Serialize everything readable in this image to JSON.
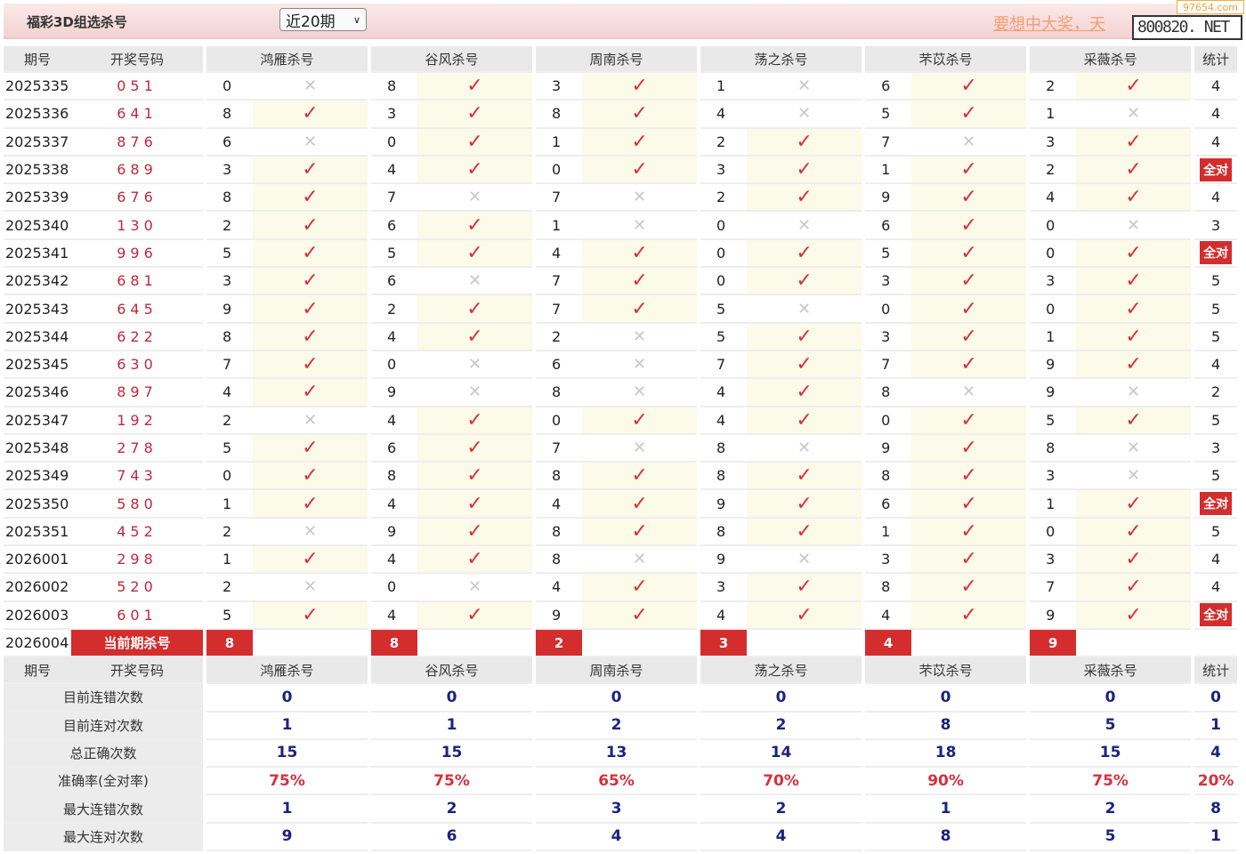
{
  "header": {
    "title": "福彩3D组选杀号",
    "period_select": "近20期",
    "promo_text": "要想中大奖，天",
    "site_box": "800820. NET",
    "site_tag": "97654.com"
  },
  "colors": {
    "check": "#d6303c",
    "cross": "#c8c8c8",
    "current_cell": "#d42d2d",
    "stat_number": "#1a237e",
    "check_bg": "#fcfae8"
  },
  "columns": {
    "issue": "期号",
    "draw": "开奖号码",
    "groups": [
      "鸿雁杀号",
      "谷风杀号",
      "周南杀号",
      "荡之杀号",
      "芣苡杀号",
      "采薇杀号"
    ],
    "stat": "统计"
  },
  "marks": {
    "check": "✓",
    "cross": "✕"
  },
  "rows": [
    {
      "issue": "2025335",
      "draw": "051",
      "kills": [
        [
          "0",
          0
        ],
        [
          "8",
          1
        ],
        [
          "3",
          1
        ],
        [
          "1",
          0
        ],
        [
          "6",
          1
        ],
        [
          "2",
          1
        ]
      ],
      "stat": "4"
    },
    {
      "issue": "2025336",
      "draw": "641",
      "kills": [
        [
          "8",
          1
        ],
        [
          "3",
          1
        ],
        [
          "8",
          1
        ],
        [
          "4",
          0
        ],
        [
          "5",
          1
        ],
        [
          "1",
          0
        ]
      ],
      "stat": "4"
    },
    {
      "issue": "2025337",
      "draw": "876",
      "kills": [
        [
          "6",
          0
        ],
        [
          "0",
          1
        ],
        [
          "1",
          1
        ],
        [
          "2",
          1
        ],
        [
          "7",
          0
        ],
        [
          "3",
          1
        ]
      ],
      "stat": "4"
    },
    {
      "issue": "2025338",
      "draw": "689",
      "kills": [
        [
          "3",
          1
        ],
        [
          "4",
          1
        ],
        [
          "0",
          1
        ],
        [
          "3",
          1
        ],
        [
          "1",
          1
        ],
        [
          "2",
          1
        ]
      ],
      "stat": "全对"
    },
    {
      "issue": "2025339",
      "draw": "676",
      "kills": [
        [
          "8",
          1
        ],
        [
          "7",
          0
        ],
        [
          "7",
          0
        ],
        [
          "2",
          1
        ],
        [
          "9",
          1
        ],
        [
          "4",
          1
        ]
      ],
      "stat": "4"
    },
    {
      "issue": "2025340",
      "draw": "130",
      "kills": [
        [
          "2",
          1
        ],
        [
          "6",
          1
        ],
        [
          "1",
          0
        ],
        [
          "0",
          0
        ],
        [
          "6",
          1
        ],
        [
          "0",
          0
        ]
      ],
      "stat": "3"
    },
    {
      "issue": "2025341",
      "draw": "996",
      "kills": [
        [
          "5",
          1
        ],
        [
          "5",
          1
        ],
        [
          "4",
          1
        ],
        [
          "0",
          1
        ],
        [
          "5",
          1
        ],
        [
          "0",
          1
        ]
      ],
      "stat": "全对"
    },
    {
      "issue": "2025342",
      "draw": "681",
      "kills": [
        [
          "3",
          1
        ],
        [
          "6",
          0
        ],
        [
          "7",
          1
        ],
        [
          "0",
          1
        ],
        [
          "3",
          1
        ],
        [
          "3",
          1
        ]
      ],
      "stat": "5"
    },
    {
      "issue": "2025343",
      "draw": "645",
      "kills": [
        [
          "9",
          1
        ],
        [
          "2",
          1
        ],
        [
          "7",
          1
        ],
        [
          "5",
          0
        ],
        [
          "0",
          1
        ],
        [
          "0",
          1
        ]
      ],
      "stat": "5"
    },
    {
      "issue": "2025344",
      "draw": "622",
      "kills": [
        [
          "8",
          1
        ],
        [
          "4",
          1
        ],
        [
          "2",
          0
        ],
        [
          "5",
          1
        ],
        [
          "3",
          1
        ],
        [
          "1",
          1
        ]
      ],
      "stat": "5"
    },
    {
      "issue": "2025345",
      "draw": "630",
      "kills": [
        [
          "7",
          1
        ],
        [
          "0",
          0
        ],
        [
          "6",
          0
        ],
        [
          "7",
          1
        ],
        [
          "7",
          1
        ],
        [
          "9",
          1
        ]
      ],
      "stat": "4"
    },
    {
      "issue": "2025346",
      "draw": "897",
      "kills": [
        [
          "4",
          1
        ],
        [
          "9",
          0
        ],
        [
          "8",
          0
        ],
        [
          "4",
          1
        ],
        [
          "8",
          0
        ],
        [
          "9",
          0
        ]
      ],
      "stat": "2"
    },
    {
      "issue": "2025347",
      "draw": "192",
      "kills": [
        [
          "2",
          0
        ],
        [
          "4",
          1
        ],
        [
          "0",
          1
        ],
        [
          "4",
          1
        ],
        [
          "0",
          1
        ],
        [
          "5",
          1
        ]
      ],
      "stat": "5"
    },
    {
      "issue": "2025348",
      "draw": "278",
      "kills": [
        [
          "5",
          1
        ],
        [
          "6",
          1
        ],
        [
          "7",
          0
        ],
        [
          "8",
          0
        ],
        [
          "9",
          1
        ],
        [
          "8",
          0
        ]
      ],
      "stat": "3"
    },
    {
      "issue": "2025349",
      "draw": "743",
      "kills": [
        [
          "0",
          1
        ],
        [
          "8",
          1
        ],
        [
          "8",
          1
        ],
        [
          "8",
          1
        ],
        [
          "8",
          1
        ],
        [
          "3",
          0
        ]
      ],
      "stat": "5"
    },
    {
      "issue": "2025350",
      "draw": "580",
      "kills": [
        [
          "1",
          1
        ],
        [
          "4",
          1
        ],
        [
          "4",
          1
        ],
        [
          "9",
          1
        ],
        [
          "6",
          1
        ],
        [
          "1",
          1
        ]
      ],
      "stat": "全对"
    },
    {
      "issue": "2025351",
      "draw": "452",
      "kills": [
        [
          "2",
          0
        ],
        [
          "9",
          1
        ],
        [
          "8",
          1
        ],
        [
          "8",
          1
        ],
        [
          "1",
          1
        ],
        [
          "0",
          1
        ]
      ],
      "stat": "5"
    },
    {
      "issue": "2026001",
      "draw": "298",
      "kills": [
        [
          "1",
          1
        ],
        [
          "4",
          1
        ],
        [
          "8",
          0
        ],
        [
          "9",
          0
        ],
        [
          "3",
          1
        ],
        [
          "3",
          1
        ]
      ],
      "stat": "4"
    },
    {
      "issue": "2026002",
      "draw": "520",
      "kills": [
        [
          "2",
          0
        ],
        [
          "0",
          0
        ],
        [
          "4",
          1
        ],
        [
          "3",
          1
        ],
        [
          "8",
          1
        ],
        [
          "7",
          1
        ]
      ],
      "stat": "4"
    },
    {
      "issue": "2026003",
      "draw": "601",
      "kills": [
        [
          "5",
          1
        ],
        [
          "4",
          1
        ],
        [
          "9",
          1
        ],
        [
          "4",
          1
        ],
        [
          "4",
          1
        ],
        [
          "9",
          1
        ]
      ],
      "stat": "全对"
    }
  ],
  "current": {
    "issue": "2026004",
    "label": "当前期杀号",
    "kills": [
      "8",
      "8",
      "2",
      "3",
      "4",
      "9"
    ]
  },
  "stats": [
    {
      "label": "目前连错次数",
      "values": [
        "0",
        "0",
        "0",
        "0",
        "0",
        "0"
      ],
      "stat": "0"
    },
    {
      "label": "目前连对次数",
      "values": [
        "1",
        "1",
        "2",
        "2",
        "8",
        "5"
      ],
      "stat": "1"
    },
    {
      "label": "总正确次数",
      "values": [
        "15",
        "15",
        "13",
        "14",
        "18",
        "15"
      ],
      "stat": "4"
    },
    {
      "label": "准确率(全对率)",
      "values": [
        "75%",
        "75%",
        "65%",
        "70%",
        "90%",
        "75%"
      ],
      "stat": "20%"
    },
    {
      "label": "最大连错次数",
      "values": [
        "1",
        "2",
        "3",
        "2",
        "1",
        "2"
      ],
      "stat": "8"
    },
    {
      "label": "最大连对次数",
      "values": [
        "9",
        "6",
        "4",
        "4",
        "8",
        "5"
      ],
      "stat": "1"
    }
  ]
}
